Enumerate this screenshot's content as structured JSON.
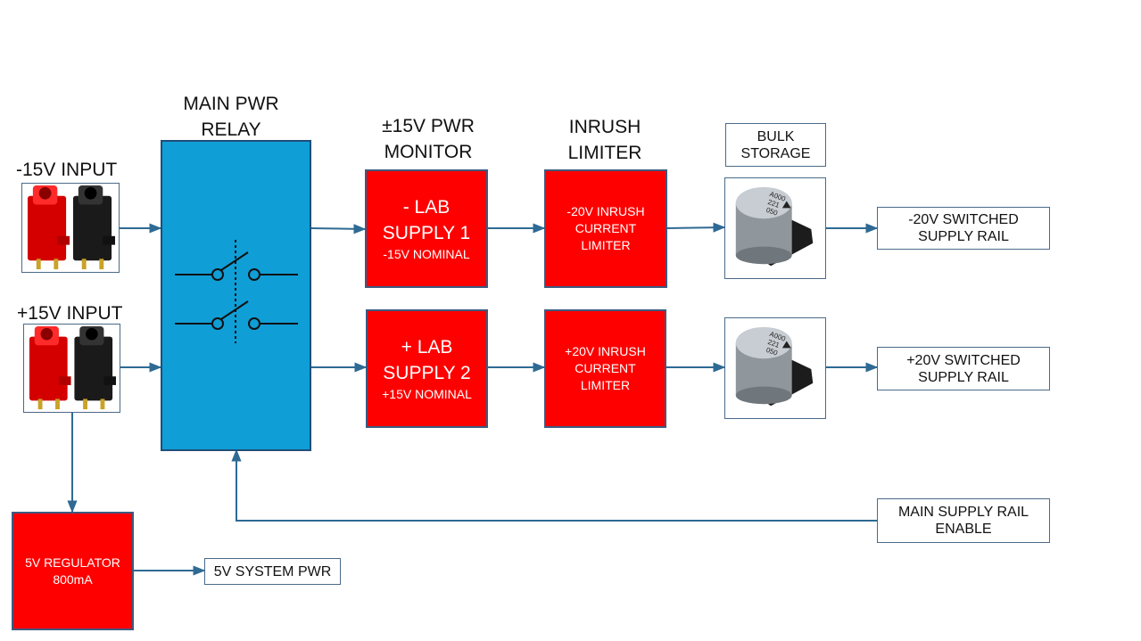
{
  "labels": {
    "main_pwr_relay": [
      "MAIN PWR",
      "RELAY"
    ],
    "pwr_monitor": [
      "±15V PWR",
      "MONITOR"
    ],
    "inrush_limiter": [
      "INRUSH",
      "LIMITER"
    ],
    "neg_input": "-15V INPUT",
    "pos_input": "+15V INPUT"
  },
  "bulk_storage": [
    "BULK",
    "STORAGE"
  ],
  "lab_supply_1": {
    "title": [
      "- LAB",
      "SUPPLY 1"
    ],
    "note": "-15V NOMINAL"
  },
  "lab_supply_2": {
    "title": [
      "+ LAB",
      "SUPPLY 2"
    ],
    "note": "+15V NOMINAL"
  },
  "inrush_neg": [
    "-20V INRUSH",
    "CURRENT",
    "LIMITER"
  ],
  "inrush_pos": [
    "+20V INRUSH",
    "CURRENT",
    "LIMITER"
  ],
  "rail_neg": [
    "-20V SWITCHED",
    "SUPPLY RAIL"
  ],
  "rail_pos": [
    "+20V SWITCHED",
    "SUPPLY RAIL"
  ],
  "enable": [
    "MAIN SUPPLY RAIL",
    "ENABLE"
  ],
  "regulator": [
    "5V REGULATOR",
    "800mA"
  ],
  "system_pwr": "5V SYSTEM PWR",
  "capacitor_marking": [
    "A000",
    "221",
    "050"
  ],
  "icons": {
    "connector": "banana-jack-pair-icon",
    "capacitor": "electrolytic-capacitor-icon",
    "relay": "dpst-switch-icon"
  },
  "colors": {
    "relay_fill": "#109ed6",
    "block_fill": "#ff0000",
    "wire": "#2e6a94"
  }
}
